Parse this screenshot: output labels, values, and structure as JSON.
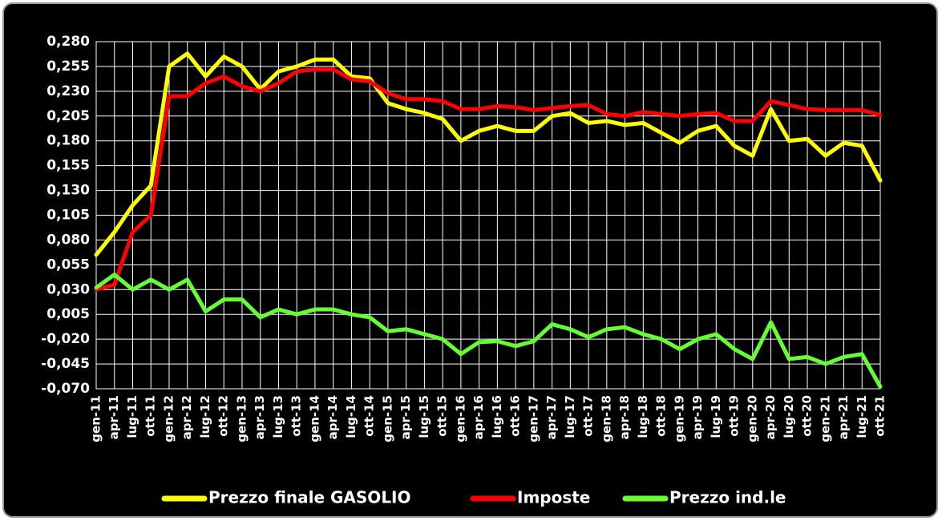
{
  "chart_data": {
    "type": "line",
    "categories": [
      "gen-11",
      "apr-11",
      "lug-11",
      "ott-11",
      "gen-12",
      "apr-12",
      "lug-12",
      "ott-12",
      "gen-13",
      "apr-13",
      "lug-13",
      "ott-13",
      "gen-14",
      "apr-14",
      "lug-14",
      "ott-14",
      "gen-15",
      "apr-15",
      "lug-15",
      "ott-15",
      "gen-16",
      "apr-16",
      "lug-16",
      "ott-16",
      "gen-17",
      "apr-17",
      "lug-17",
      "ott-17",
      "gen-18",
      "apr-18",
      "lug-18",
      "ott-18",
      "gen-19",
      "apr-19",
      "lug-19",
      "ott-19",
      "gen-20",
      "apr-20",
      "lug-20",
      "ott-20",
      "gen-21",
      "apr-21",
      "lug-21",
      "ott-21"
    ],
    "series": [
      {
        "name": "Prezzo finale GASOLIO",
        "color": "#ffff00",
        "values": [
          0.065,
          0.088,
          0.115,
          0.135,
          0.255,
          0.268,
          0.245,
          0.265,
          0.255,
          0.232,
          0.25,
          0.255,
          0.262,
          0.262,
          0.245,
          0.243,
          0.218,
          0.212,
          0.208,
          0.202,
          0.18,
          0.19,
          0.195,
          0.19,
          0.19,
          0.205,
          0.208,
          0.198,
          0.2,
          0.196,
          0.198,
          0.188,
          0.178,
          0.19,
          0.195,
          0.175,
          0.165,
          0.212,
          0.18,
          0.182,
          0.165,
          0.178,
          0.175,
          0.14
        ]
      },
      {
        "name": "Imposte",
        "color": "#ff0000",
        "values": [
          0.03,
          0.035,
          0.088,
          0.105,
          0.225,
          0.225,
          0.238,
          0.245,
          0.235,
          0.23,
          0.238,
          0.25,
          0.252,
          0.252,
          0.242,
          0.24,
          0.228,
          0.222,
          0.222,
          0.22,
          0.212,
          0.212,
          0.215,
          0.214,
          0.211,
          0.213,
          0.215,
          0.216,
          0.207,
          0.205,
          0.209,
          0.207,
          0.205,
          0.207,
          0.208,
          0.2,
          0.2,
          0.22,
          0.216,
          0.212,
          0.211,
          0.211,
          0.211,
          0.206
        ]
      },
      {
        "name": "Prezzo ind.le",
        "color": "#66ff33",
        "values": [
          0.032,
          0.045,
          0.03,
          0.04,
          0.03,
          0.04,
          0.008,
          0.02,
          0.02,
          0.002,
          0.01,
          0.005,
          0.01,
          0.01,
          0.005,
          0.002,
          -0.012,
          -0.01,
          -0.015,
          -0.02,
          -0.035,
          -0.023,
          -0.022,
          -0.027,
          -0.022,
          -0.005,
          -0.01,
          -0.018,
          -0.01,
          -0.008,
          -0.015,
          -0.02,
          -0.03,
          -0.02,
          -0.015,
          -0.03,
          -0.04,
          -0.003,
          -0.04,
          -0.038,
          -0.045,
          -0.038,
          -0.035,
          -0.068
        ]
      }
    ],
    "ylim": [
      -0.07,
      0.28
    ],
    "yticks": [
      {
        "value": 0.28,
        "label": "0,280"
      },
      {
        "value": 0.255,
        "label": "0,255"
      },
      {
        "value": 0.23,
        "label": "0,230"
      },
      {
        "value": 0.205,
        "label": "0,205"
      },
      {
        "value": 0.18,
        "label": "0,180"
      },
      {
        "value": 0.155,
        "label": "0,155"
      },
      {
        "value": 0.13,
        "label": "0,130"
      },
      {
        "value": 0.105,
        "label": "0,105"
      },
      {
        "value": 0.08,
        "label": "0,080"
      },
      {
        "value": 0.055,
        "label": "0,055"
      },
      {
        "value": 0.03,
        "label": "0,030"
      },
      {
        "value": 0.005,
        "label": "0,005"
      },
      {
        "value": -0.02,
        "label": "-0,020"
      },
      {
        "value": -0.045,
        "label": "-0,045"
      },
      {
        "value": -0.07,
        "label": "-0,070"
      }
    ],
    "grid": true,
    "negative_tick_color": "#ff0000",
    "legend": "bottom"
  }
}
